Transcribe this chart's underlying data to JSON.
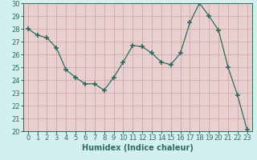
{
  "x": [
    0,
    1,
    2,
    3,
    4,
    5,
    6,
    7,
    8,
    9,
    10,
    11,
    12,
    13,
    14,
    15,
    16,
    17,
    18,
    19,
    20,
    21,
    22,
    23
  ],
  "y": [
    28.0,
    27.5,
    27.3,
    26.5,
    24.8,
    24.2,
    23.7,
    23.7,
    23.2,
    24.2,
    25.4,
    26.7,
    26.6,
    26.1,
    25.4,
    25.2,
    26.1,
    28.5,
    30.0,
    29.0,
    27.9,
    25.0,
    22.8,
    20.1
  ],
  "xlabel": "Humidex (Indice chaleur)",
  "ylim": [
    20,
    30
  ],
  "xlim": [
    -0.5,
    23.5
  ],
  "yticks": [
    20,
    21,
    22,
    23,
    24,
    25,
    26,
    27,
    28,
    29,
    30
  ],
  "xticks": [
    0,
    1,
    2,
    3,
    4,
    5,
    6,
    7,
    8,
    9,
    10,
    11,
    12,
    13,
    14,
    15,
    16,
    17,
    18,
    19,
    20,
    21,
    22,
    23
  ],
  "line_color": "#2e6b5e",
  "bg_color": "#d4f0ee",
  "grid_bg_color": "#e8c8c8",
  "grid_line_color": "#c8a8a8",
  "label_fontsize": 7,
  "tick_fontsize": 6
}
